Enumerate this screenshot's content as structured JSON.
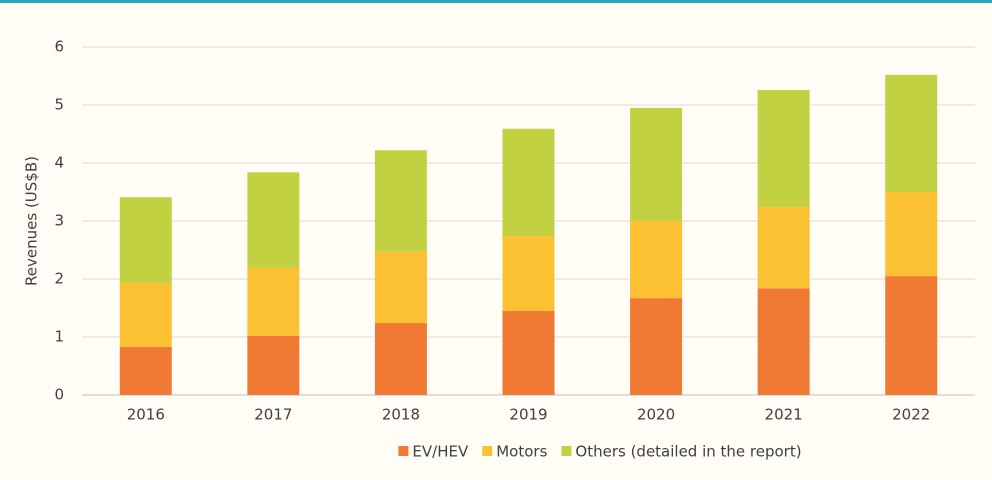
{
  "chart_data": {
    "type": "stacked_bar",
    "y_label": "Revenues (US$B)",
    "categories": [
      "2016",
      "2017",
      "2018",
      "2019",
      "2020",
      "2021",
      "2022"
    ],
    "series": [
      {
        "name": "EV/HEV",
        "color": "#f07a34",
        "values": [
          0.83,
          1.02,
          1.24,
          1.45,
          1.67,
          1.84,
          2.05
        ]
      },
      {
        "name": "Motors",
        "color": "#fbc132",
        "values": [
          1.1,
          1.17,
          1.23,
          1.29,
          1.33,
          1.4,
          1.45
        ]
      },
      {
        "name": "Others (detailed in the report)",
        "color": "#c2d141",
        "values": [
          1.48,
          1.65,
          1.75,
          1.85,
          1.95,
          2.02,
          2.02
        ]
      }
    ],
    "ylim": [
      0,
      6
    ],
    "yticks": [
      0,
      1,
      2,
      3,
      4,
      5,
      6
    ],
    "grid": true,
    "legend": "bottom"
  }
}
